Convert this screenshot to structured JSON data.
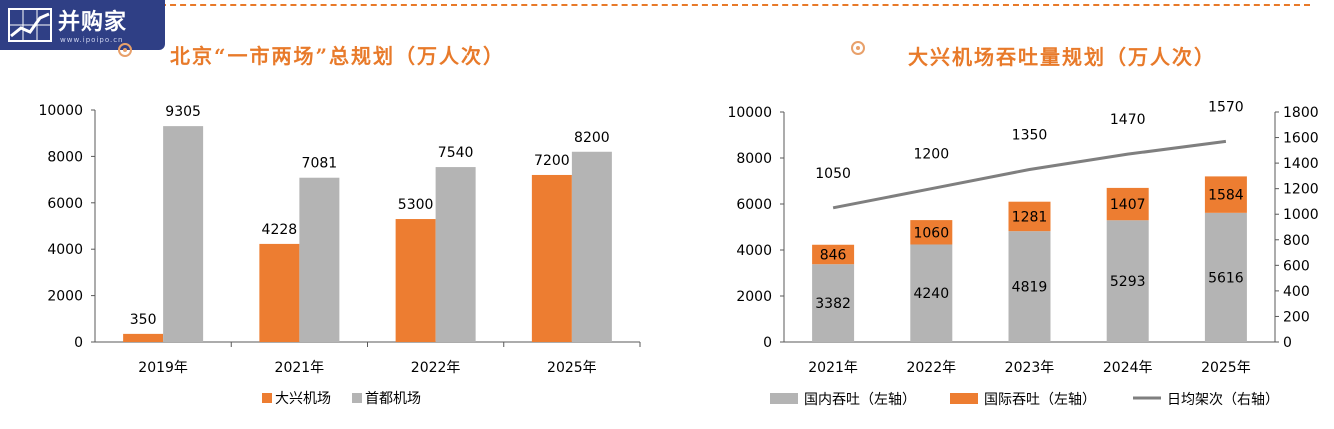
{
  "logo": {
    "text": "并购家",
    "url": "www.ipoipo.cn"
  },
  "chart_data": [
    {
      "type": "bar",
      "title": "北京“一市两场”总规划（万人次）",
      "categories": [
        "2019年",
        "2021年",
        "2022年",
        "2025年"
      ],
      "series": [
        {
          "name": "大兴机场",
          "color": "#ed7d31",
          "values": [
            350,
            4228,
            5300,
            7200
          ]
        },
        {
          "name": "首都机场",
          "color": "#b4b4b4",
          "values": [
            9305,
            7081,
            7540,
            8200
          ]
        }
      ],
      "ylim": [
        0,
        10000
      ],
      "yticks": [
        0,
        2000,
        4000,
        6000,
        8000,
        10000
      ],
      "legend": "bottom"
    },
    {
      "type": "bar",
      "stacked": true,
      "title": "大兴机场吞吐量规划（万人次）",
      "categories": [
        "2021年",
        "2022年",
        "2023年",
        "2024年",
        "2025年"
      ],
      "series": [
        {
          "name": "国内吞吐（左轴）",
          "color": "#b4b4b4",
          "axis": "left",
          "values": [
            3382,
            4240,
            4819,
            5293,
            5616
          ]
        },
        {
          "name": "国际吞吐（左轴）",
          "color": "#ed7d31",
          "axis": "left",
          "values": [
            846,
            1060,
            1281,
            1407,
            1584
          ]
        },
        {
          "name": "日均架次（右轴）",
          "color": "#7f7f7f",
          "axis": "right",
          "type": "line",
          "values": [
            1050,
            1200,
            1350,
            1470,
            1570
          ]
        }
      ],
      "ylim": [
        0,
        10000
      ],
      "yticks": [
        0,
        2000,
        4000,
        6000,
        8000,
        10000
      ],
      "y2lim": [
        0,
        1800
      ],
      "y2ticks": [
        0,
        200,
        400,
        600,
        800,
        1000,
        1200,
        1400,
        1600,
        1800
      ],
      "legend": "bottom"
    }
  ]
}
